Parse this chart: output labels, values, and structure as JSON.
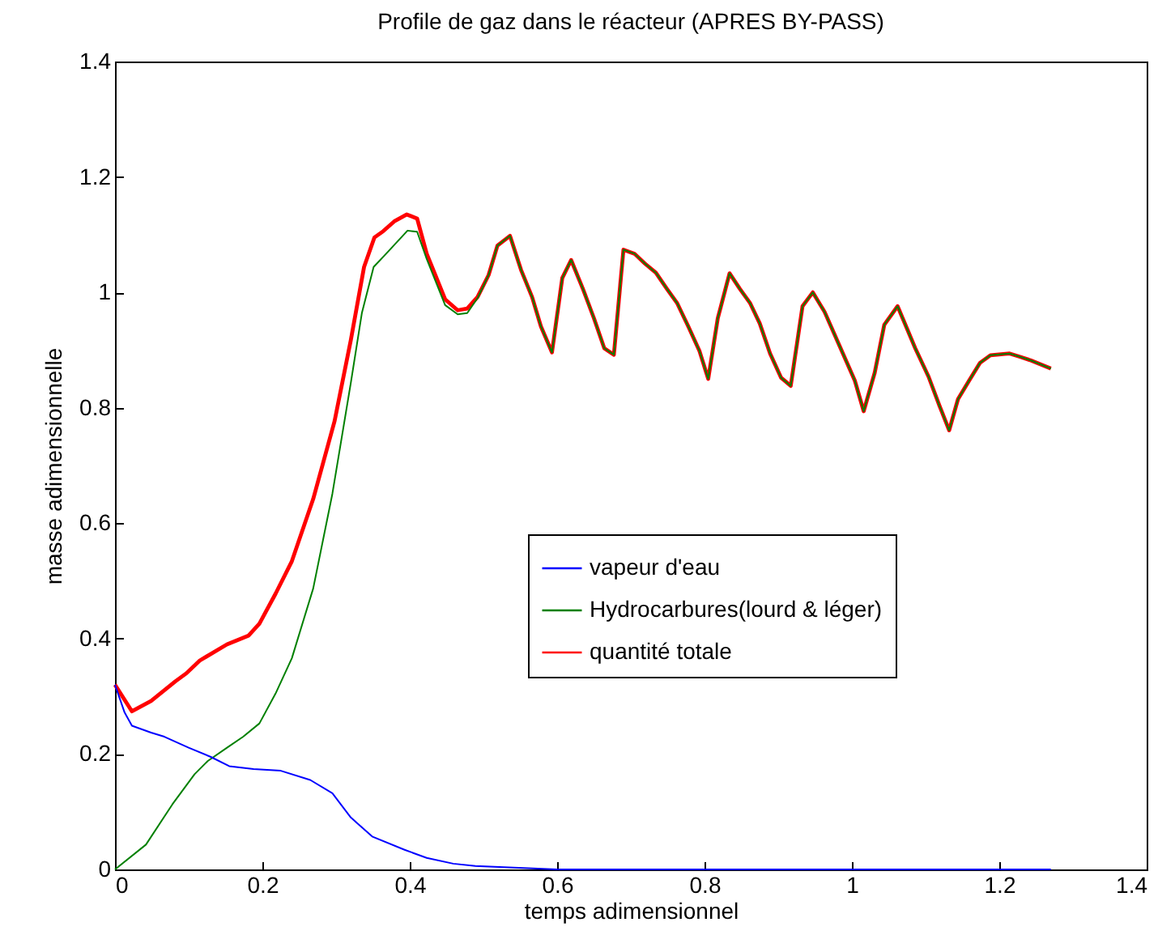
{
  "chart_data": {
    "type": "line",
    "title": "Profile de gaz dans le réacteur (APRES BY-PASS)",
    "xlabel": "temps adimensionnel",
    "ylabel": "masse adimensionnelle",
    "xlim": [
      0,
      1.4
    ],
    "ylim": [
      0,
      1.4
    ],
    "xticks": [
      0,
      0.2,
      0.4,
      0.6,
      0.8,
      1,
      1.2,
      1.4
    ],
    "yticks": [
      0,
      0.2,
      0.4,
      0.6,
      0.8,
      1,
      1.2,
      1.4
    ],
    "grid": false,
    "legend": "right",
    "line_style": "solid",
    "marker": "none",
    "series": [
      {
        "name": "vapeur d'eau",
        "color": "#0000ff",
        "x": [
          0,
          0.013,
          0.023,
          0.049,
          0.067,
          0.1,
          0.13,
          0.155,
          0.188,
          0.225,
          0.265,
          0.295,
          0.32,
          0.349,
          0.393,
          0.423,
          0.459,
          0.489,
          0.6,
          0.8,
          1,
          1.2,
          1.27
        ],
        "values": [
          0.32,
          0.272,
          0.249,
          0.237,
          0.23,
          0.211,
          0.195,
          0.179,
          0.174,
          0.171,
          0.155,
          0.132,
          0.09,
          0.057,
          0.034,
          0.02,
          0.01,
          0.006,
          0,
          0,
          0,
          0,
          0
        ]
      },
      {
        "name": "Hydrocarbures(lourd & léger)",
        "color": "#008000",
        "x": [
          0,
          0.042,
          0.078,
          0.108,
          0.126,
          0.152,
          0.174,
          0.196,
          0.218,
          0.24,
          0.269,
          0.295,
          0.32,
          0.335,
          0.351,
          0.368,
          0.397,
          0.41,
          0.423,
          0.448,
          0.465,
          0.478,
          0.492,
          0.507,
          0.519,
          0.536,
          0.551,
          0.566,
          0.578,
          0.593,
          0.607,
          0.619,
          0.635,
          0.65,
          0.664,
          0.677,
          0.69,
          0.705,
          0.719,
          0.734,
          0.749,
          0.763,
          0.778,
          0.793,
          0.805,
          0.818,
          0.834,
          0.848,
          0.862,
          0.875,
          0.889,
          0.904,
          0.917,
          0.933,
          0.947,
          0.963,
          0.983,
          1.004,
          1.016,
          1.031,
          1.044,
          1.062,
          1.086,
          1.104,
          1.119,
          1.132,
          1.144,
          1.159,
          1.174,
          1.188,
          1.214,
          1.229,
          1.243,
          1.27
        ],
        "values": [
          0,
          0.043,
          0.113,
          0.165,
          0.188,
          0.211,
          0.23,
          0.253,
          0.305,
          0.366,
          0.487,
          0.651,
          0.843,
          0.964,
          1.044,
          1.067,
          1.107,
          1.105,
          1.058,
          0.978,
          0.962,
          0.964,
          0.99,
          1.03,
          1.081,
          1.098,
          1.039,
          0.992,
          0.941,
          0.896,
          1.025,
          1.056,
          1.006,
          0.955,
          0.903,
          0.892,
          1.074,
          1.067,
          1.05,
          1.034,
          1.006,
          0.981,
          0.941,
          0.899,
          0.85,
          0.955,
          1.033,
          1.006,
          0.981,
          0.946,
          0.894,
          0.852,
          0.838,
          0.976,
          1.0,
          0.966,
          0.908,
          0.847,
          0.794,
          0.861,
          0.944,
          0.976,
          0.903,
          0.854,
          0.803,
          0.761,
          0.815,
          0.847,
          0.878,
          0.891,
          0.894,
          0.888,
          0.882,
          0.868
        ]
      },
      {
        "name": "quantité totale",
        "color": "#ff0000",
        "x": [
          0,
          0.023,
          0.049,
          0.082,
          0.097,
          0.115,
          0.152,
          0.181,
          0.196,
          0.218,
          0.24,
          0.269,
          0.298,
          0.32,
          0.338,
          0.352,
          0.364,
          0.379,
          0.396,
          0.41,
          0.423,
          0.448,
          0.465,
          0.478,
          0.492,
          0.507,
          0.519,
          0.536,
          0.551,
          0.566,
          0.578,
          0.593,
          0.607,
          0.619,
          0.635,
          0.65,
          0.664,
          0.677,
          0.69,
          0.705,
          0.719,
          0.734,
          0.749,
          0.763,
          0.778,
          0.793,
          0.805,
          0.818,
          0.834,
          0.848,
          0.862,
          0.875,
          0.889,
          0.904,
          0.917,
          0.933,
          0.947,
          0.963,
          0.983,
          1.004,
          1.016,
          1.031,
          1.044,
          1.062,
          1.086,
          1.104,
          1.119,
          1.132,
          1.144,
          1.159,
          1.174,
          1.188,
          1.214,
          1.229,
          1.243,
          1.27
        ],
        "values": [
          0.32,
          0.274,
          0.292,
          0.326,
          0.34,
          0.362,
          0.39,
          0.405,
          0.426,
          0.478,
          0.534,
          0.642,
          0.777,
          0.917,
          1.044,
          1.095,
          1.106,
          1.123,
          1.135,
          1.128,
          1.067,
          0.988,
          0.969,
          0.972,
          0.992,
          1.03,
          1.081,
          1.098,
          1.039,
          0.992,
          0.941,
          0.896,
          1.025,
          1.056,
          1.006,
          0.955,
          0.903,
          0.892,
          1.074,
          1.067,
          1.05,
          1.034,
          1.006,
          0.981,
          0.941,
          0.899,
          0.85,
          0.955,
          1.033,
          1.006,
          0.981,
          0.946,
          0.894,
          0.852,
          0.838,
          0.976,
          1.0,
          0.966,
          0.908,
          0.847,
          0.794,
          0.861,
          0.944,
          0.976,
          0.903,
          0.854,
          0.803,
          0.761,
          0.815,
          0.847,
          0.878,
          0.891,
          0.894,
          0.888,
          0.882,
          0.868
        ]
      }
    ]
  }
}
